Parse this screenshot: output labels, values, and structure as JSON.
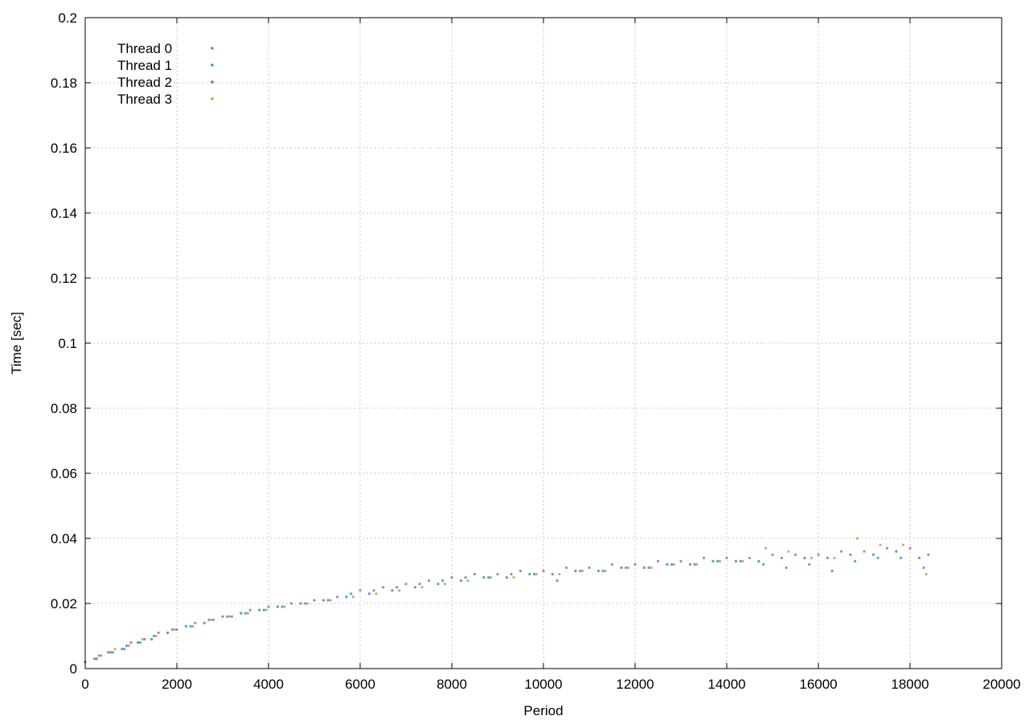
{
  "chart_data": {
    "type": "scatter",
    "title": "",
    "xlabel": "Period",
    "ylabel": "Time [sec]",
    "xlim": [
      0,
      20000
    ],
    "ylim": [
      0,
      0.2
    ],
    "x_ticks": [
      "0",
      "2000",
      "4000",
      "6000",
      "8000",
      "10000",
      "12000",
      "14000",
      "16000",
      "18000",
      "20000"
    ],
    "y_ticks": [
      "0",
      "0.02",
      "0.04",
      "0.06",
      "0.08",
      "0.1",
      "0.12",
      "0.14",
      "0.16",
      "0.18",
      "0.2"
    ],
    "grid": true,
    "legend_position": "top-left",
    "marker": "dot",
    "series": [
      {
        "name": "Thread 0",
        "color": "#9370c8",
        "points": [
          [
            0,
            0.002
          ],
          [
            200,
            0.003
          ],
          [
            500,
            0.005
          ],
          [
            800,
            0.006
          ],
          [
            1000,
            0.008
          ],
          [
            1300,
            0.009
          ],
          [
            1600,
            0.011
          ],
          [
            2000,
            0.012
          ],
          [
            2400,
            0.014
          ],
          [
            2800,
            0.015
          ],
          [
            3200,
            0.016
          ],
          [
            3600,
            0.018
          ],
          [
            4000,
            0.019
          ],
          [
            4500,
            0.02
          ],
          [
            5000,
            0.021
          ],
          [
            5500,
            0.022
          ],
          [
            6000,
            0.024
          ],
          [
            6500,
            0.025
          ],
          [
            7000,
            0.026
          ],
          [
            7500,
            0.027
          ],
          [
            8000,
            0.028
          ],
          [
            8500,
            0.029
          ],
          [
            9000,
            0.029
          ],
          [
            9500,
            0.03
          ],
          [
            10000,
            0.03
          ],
          [
            10500,
            0.031
          ],
          [
            11000,
            0.031
          ],
          [
            11500,
            0.032
          ],
          [
            12000,
            0.032
          ],
          [
            12500,
            0.033
          ],
          [
            13000,
            0.033
          ],
          [
            13500,
            0.034
          ],
          [
            14000,
            0.034
          ],
          [
            14500,
            0.034
          ],
          [
            15000,
            0.035
          ],
          [
            15500,
            0.035
          ],
          [
            16000,
            0.035
          ],
          [
            16500,
            0.036
          ],
          [
            17000,
            0.036
          ],
          [
            17500,
            0.037
          ],
          [
            18000,
            0.037
          ],
          [
            18400,
            0.035
          ]
        ]
      },
      {
        "name": "Thread 1",
        "color": "#2aa0c0",
        "points": [
          [
            0,
            0.002
          ],
          [
            300,
            0.004
          ],
          [
            600,
            0.005
          ],
          [
            900,
            0.007
          ],
          [
            1200,
            0.008
          ],
          [
            1500,
            0.01
          ],
          [
            1900,
            0.012
          ],
          [
            2300,
            0.013
          ],
          [
            2700,
            0.015
          ],
          [
            3100,
            0.016
          ],
          [
            3500,
            0.017
          ],
          [
            3900,
            0.018
          ],
          [
            4300,
            0.019
          ],
          [
            4800,
            0.02
          ],
          [
            5300,
            0.021
          ],
          [
            5800,
            0.023
          ],
          [
            6300,
            0.024
          ],
          [
            6800,
            0.025
          ],
          [
            7300,
            0.026
          ],
          [
            7800,
            0.027
          ],
          [
            8300,
            0.028
          ],
          [
            8800,
            0.028
          ],
          [
            9300,
            0.029
          ],
          [
            9800,
            0.029
          ],
          [
            10300,
            0.027
          ],
          [
            10800,
            0.03
          ],
          [
            11300,
            0.03
          ],
          [
            11800,
            0.031
          ],
          [
            12300,
            0.031
          ],
          [
            12800,
            0.032
          ],
          [
            13300,
            0.032
          ],
          [
            13800,
            0.033
          ],
          [
            14300,
            0.033
          ],
          [
            14800,
            0.032
          ],
          [
            15300,
            0.031
          ],
          [
            15800,
            0.032
          ],
          [
            16300,
            0.03
          ],
          [
            16800,
            0.033
          ],
          [
            17300,
            0.034
          ],
          [
            17800,
            0.034
          ],
          [
            18300,
            0.031
          ]
        ]
      },
      {
        "name": "Thread 2",
        "color": "#3a8fb0",
        "points": [
          [
            0,
            0.002
          ],
          [
            250,
            0.003
          ],
          [
            550,
            0.005
          ],
          [
            850,
            0.006
          ],
          [
            1150,
            0.008
          ],
          [
            1450,
            0.009
          ],
          [
            1800,
            0.011
          ],
          [
            2200,
            0.013
          ],
          [
            2600,
            0.014
          ],
          [
            3000,
            0.016
          ],
          [
            3400,
            0.017
          ],
          [
            3800,
            0.018
          ],
          [
            4200,
            0.019
          ],
          [
            4700,
            0.02
          ],
          [
            5200,
            0.021
          ],
          [
            5700,
            0.022
          ],
          [
            6200,
            0.023
          ],
          [
            6700,
            0.024
          ],
          [
            7200,
            0.025
          ],
          [
            7700,
            0.026
          ],
          [
            8200,
            0.027
          ],
          [
            8700,
            0.028
          ],
          [
            9200,
            0.028
          ],
          [
            9700,
            0.029
          ],
          [
            10200,
            0.029
          ],
          [
            10700,
            0.03
          ],
          [
            11200,
            0.03
          ],
          [
            11700,
            0.031
          ],
          [
            12200,
            0.031
          ],
          [
            12700,
            0.032
          ],
          [
            13200,
            0.032
          ],
          [
            13700,
            0.033
          ],
          [
            14200,
            0.033
          ],
          [
            14700,
            0.033
          ],
          [
            15200,
            0.034
          ],
          [
            15700,
            0.034
          ],
          [
            16200,
            0.034
          ],
          [
            16700,
            0.035
          ],
          [
            17200,
            0.035
          ],
          [
            17700,
            0.036
          ],
          [
            18200,
            0.034
          ]
        ]
      },
      {
        "name": "Thread 3",
        "color": "#c8a030",
        "points": [
          [
            0,
            0.002
          ],
          [
            350,
            0.004
          ],
          [
            650,
            0.006
          ],
          [
            950,
            0.007
          ],
          [
            1250,
            0.009
          ],
          [
            1550,
            0.01
          ],
          [
            1950,
            0.012
          ],
          [
            2350,
            0.013
          ],
          [
            2750,
            0.015
          ],
          [
            3150,
            0.016
          ],
          [
            3550,
            0.017
          ],
          [
            3950,
            0.018
          ],
          [
            4350,
            0.019
          ],
          [
            4850,
            0.02
          ],
          [
            5350,
            0.021
          ],
          [
            5850,
            0.022
          ],
          [
            6350,
            0.023
          ],
          [
            6850,
            0.024
          ],
          [
            7350,
            0.025
          ],
          [
            7850,
            0.026
          ],
          [
            8350,
            0.027
          ],
          [
            8850,
            0.028
          ],
          [
            9350,
            0.028
          ],
          [
            9850,
            0.029
          ],
          [
            10350,
            0.029
          ],
          [
            10850,
            0.03
          ],
          [
            11350,
            0.03
          ],
          [
            11850,
            0.031
          ],
          [
            12350,
            0.031
          ],
          [
            12850,
            0.032
          ],
          [
            13350,
            0.032
          ],
          [
            13850,
            0.033
          ],
          [
            14350,
            0.033
          ],
          [
            14850,
            0.037
          ],
          [
            15350,
            0.036
          ],
          [
            15850,
            0.034
          ],
          [
            16350,
            0.034
          ],
          [
            16850,
            0.04
          ],
          [
            17350,
            0.038
          ],
          [
            17850,
            0.038
          ],
          [
            18350,
            0.029
          ]
        ]
      }
    ]
  }
}
